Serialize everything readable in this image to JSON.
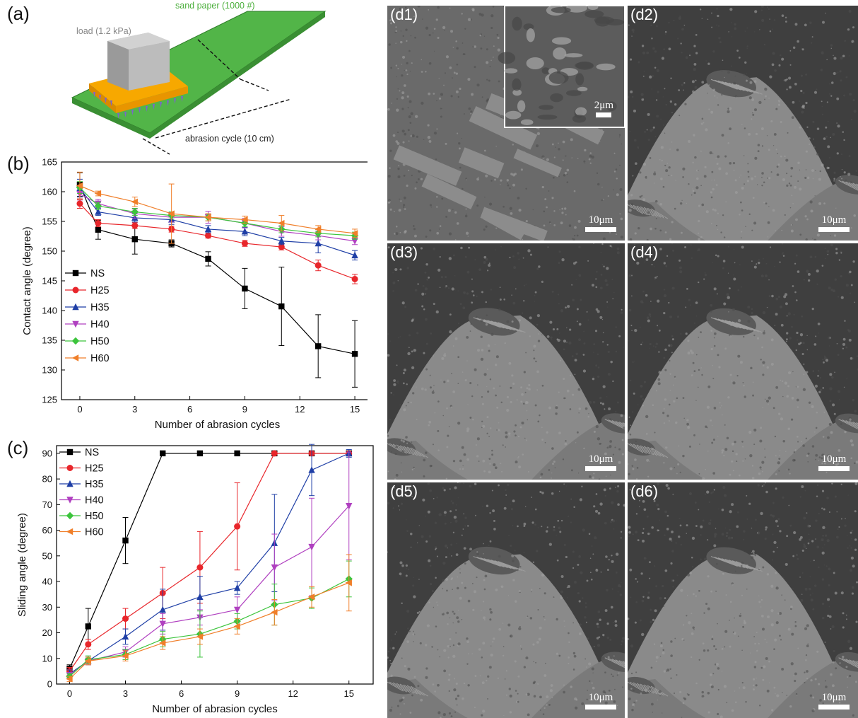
{
  "panel_a": {
    "label": "(a)",
    "sand_label": "sand paper (1000 #)",
    "load_label": "load (1.2 kPa)",
    "cycle_label": "abrasion cycle (10 cm)"
  },
  "chart_data": [
    {
      "id": "b",
      "panel_label": "(b)",
      "type": "line",
      "xlabel": "Number of abrasion cycles",
      "ylabel": "Contact angle (degree)",
      "xlim": [
        -1,
        16
      ],
      "ylim": [
        125,
        165
      ],
      "xticks": [
        0,
        3,
        6,
        9,
        12,
        15
      ],
      "yticks": [
        125,
        130,
        135,
        140,
        145,
        150,
        155,
        160,
        165
      ],
      "legend_position": "lower-left",
      "series": [
        {
          "name": "NS",
          "color": "#000000",
          "marker": "square",
          "x": [
            0,
            1,
            3,
            5,
            7,
            9,
            11,
            13,
            15
          ],
          "y": [
            161.2,
            153.6,
            152.0,
            151.3,
            148.7,
            143.7,
            140.7,
            134.0,
            132.7
          ],
          "err": [
            2.0,
            1.6,
            2.5,
            0.6,
            1.2,
            3.4,
            6.6,
            5.3,
            5.6
          ]
        },
        {
          "name": "H25",
          "color": "#e8262b",
          "marker": "circle",
          "x": [
            0,
            1,
            3,
            5,
            7,
            9,
            11,
            13,
            15
          ],
          "y": [
            158.0,
            154.7,
            154.3,
            153.7,
            152.6,
            151.3,
            150.7,
            147.6,
            145.3
          ],
          "err": [
            0.8,
            0.6,
            0.5,
            0.5,
            0.4,
            0.5,
            0.5,
            0.9,
            0.8
          ]
        },
        {
          "name": "H35",
          "color": "#1f3fa6",
          "marker": "triangle-up",
          "x": [
            0,
            1,
            3,
            5,
            7,
            9,
            11,
            13,
            15
          ],
          "y": [
            160.6,
            156.6,
            155.6,
            155.3,
            153.7,
            153.3,
            151.7,
            151.3,
            149.3
          ],
          "err": [
            1.5,
            0.6,
            0.7,
            0.8,
            0.6,
            0.7,
            0.6,
            1.6,
            0.8
          ]
        },
        {
          "name": "H40",
          "color": "#b040c0",
          "marker": "triangle-down",
          "x": [
            0,
            1,
            3,
            5,
            7,
            9,
            11,
            13,
            15
          ],
          "y": [
            159.6,
            158.0,
            156.3,
            155.7,
            155.7,
            154.7,
            153.3,
            152.6,
            151.7
          ],
          "err": [
            1.0,
            0.7,
            0.8,
            0.8,
            1.0,
            0.8,
            0.8,
            0.7,
            0.6
          ]
        },
        {
          "name": "H50",
          "color": "#3cc43c",
          "marker": "diamond",
          "x": [
            0,
            1,
            3,
            5,
            7,
            9,
            11,
            13,
            15
          ],
          "y": [
            160.7,
            157.6,
            156.6,
            156.0,
            155.7,
            154.7,
            153.7,
            153.0,
            152.6
          ],
          "err": [
            1.0,
            0.6,
            0.6,
            0.6,
            0.6,
            0.6,
            0.6,
            0.6,
            0.6
          ]
        },
        {
          "name": "H60",
          "color": "#f07f2a",
          "marker": "triangle-left",
          "x": [
            0,
            1,
            3,
            5,
            7,
            9,
            11,
            13,
            15
          ],
          "y": [
            161.0,
            159.7,
            158.3,
            156.3,
            155.7,
            155.3,
            154.7,
            153.7,
            153.0
          ],
          "err": [
            2.3,
            0.4,
            0.8,
            5.0,
            0.6,
            0.6,
            1.3,
            0.6,
            0.7
          ]
        }
      ]
    },
    {
      "id": "c",
      "panel_label": "(c)",
      "type": "line",
      "xlabel": "Number of abrasion cycles",
      "ylabel": "Sliding angle (degree)",
      "xlim": [
        -0.7,
        16.3
      ],
      "ylim": [
        0,
        93
      ],
      "xticks": [
        0,
        3,
        6,
        9,
        12,
        15
      ],
      "yticks": [
        0,
        10,
        20,
        30,
        40,
        50,
        60,
        70,
        80,
        90
      ],
      "legend_position": "top-left",
      "series": [
        {
          "name": "NS",
          "color": "#000000",
          "marker": "square",
          "x": [
            0,
            1,
            3,
            5,
            7,
            9,
            11,
            13,
            15
          ],
          "y": [
            6.0,
            22.5,
            56.0,
            90,
            90,
            90,
            90,
            90,
            90
          ],
          "err": [
            1.5,
            7.0,
            9.0,
            0,
            0,
            0,
            0,
            0,
            0
          ]
        },
        {
          "name": "H25",
          "color": "#e8262b",
          "marker": "circle",
          "x": [
            0,
            1,
            3,
            5,
            7,
            9,
            11,
            13,
            15
          ],
          "y": [
            5.0,
            15.5,
            25.5,
            35.5,
            45.5,
            61.5,
            90,
            90,
            90
          ],
          "err": [
            1.5,
            2.0,
            4.0,
            10.0,
            14.0,
            17.0,
            0,
            0,
            0
          ]
        },
        {
          "name": "H35",
          "color": "#1f3fa6",
          "marker": "triangle-up",
          "x": [
            0,
            1,
            3,
            5,
            7,
            9,
            11,
            13,
            15
          ],
          "y": [
            4.0,
            9.0,
            18.5,
            29.0,
            34.0,
            37.5,
            55.0,
            83.5,
            90
          ],
          "err": [
            1.5,
            1.5,
            3.0,
            8.0,
            8.0,
            2.5,
            19.0,
            10.0,
            1.5
          ]
        },
        {
          "name": "H40",
          "color": "#b040c0",
          "marker": "triangle-down",
          "x": [
            0,
            1,
            3,
            5,
            7,
            9,
            11,
            13,
            15
          ],
          "y": [
            3.5,
            9.0,
            12.5,
            23.5,
            26.0,
            29.0,
            45.5,
            53.5,
            69.5
          ],
          "err": [
            1.0,
            1.5,
            2.0,
            4.0,
            3.0,
            5.0,
            13.0,
            19.0,
            21.0
          ]
        },
        {
          "name": "H50",
          "color": "#3cc43c",
          "marker": "diamond",
          "x": [
            0,
            1,
            3,
            5,
            7,
            9,
            11,
            13,
            15
          ],
          "y": [
            3.0,
            9.5,
            11.5,
            17.5,
            19.5,
            24.5,
            31.0,
            33.5,
            41.0
          ],
          "err": [
            1.0,
            1.5,
            2.0,
            3.0,
            9.0,
            3.0,
            8.0,
            4.0,
            7.0
          ]
        },
        {
          "name": "H60",
          "color": "#f07f2a",
          "marker": "triangle-left",
          "x": [
            0,
            1,
            3,
            5,
            7,
            9,
            11,
            13,
            15
          ],
          "y": [
            2.0,
            9.0,
            11.0,
            16.0,
            18.5,
            22.5,
            28.0,
            34.0,
            39.5
          ],
          "err": [
            1.0,
            1.5,
            2.0,
            2.5,
            3.0,
            3.0,
            5.0,
            4.0,
            11.0
          ]
        }
      ]
    }
  ],
  "sem_panels": [
    {
      "label": "(d1)",
      "scale": "10μm",
      "inset_scale": "2μm"
    },
    {
      "label": "(d2)",
      "scale": "10μm"
    },
    {
      "label": "(d3)",
      "scale": "10μm"
    },
    {
      "label": "(d4)",
      "scale": "10μm"
    },
    {
      "label": "(d5)",
      "scale": "10μm"
    },
    {
      "label": "(d6)",
      "scale": "10μm"
    }
  ]
}
